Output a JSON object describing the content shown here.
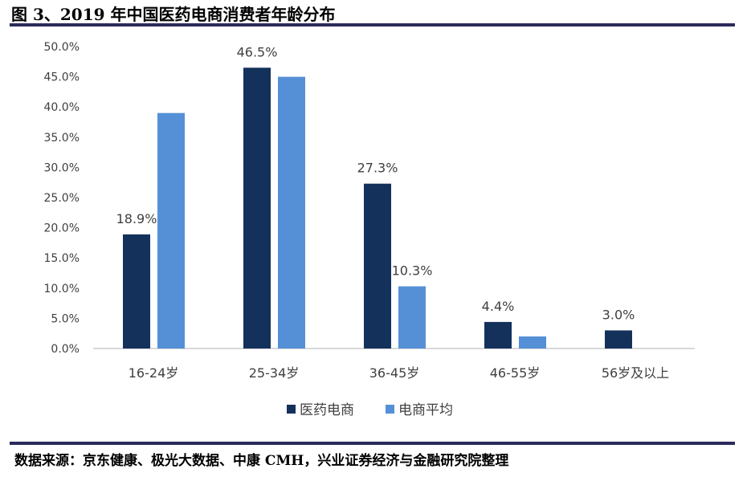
{
  "title": "图 3、2019 年中国医药电商消费者年龄分布",
  "source": "数据来源：京东健康、极光大数据、中康 CMH，兴业证券经济与金融研究院整理",
  "chart_data": {
    "type": "bar",
    "title": "图 3、2019 年中国医药电商消费者年龄分布",
    "categories": [
      "16-24岁",
      "25-34岁",
      "36-45岁",
      "46-55岁",
      "56岁及以上"
    ],
    "series": [
      {
        "name": "医药电商",
        "color": "#14315c",
        "values": [
          18.9,
          46.5,
          27.3,
          4.4,
          3.0
        ],
        "labels": [
          "18.9%",
          "46.5%",
          "27.3%",
          "4.4%",
          "3.0%"
        ]
      },
      {
        "name": "电商平均",
        "color": "#5590d6",
        "values": [
          39.0,
          45.0,
          10.3,
          2.0,
          0
        ],
        "labels": [
          "",
          "",
          "10.3%",
          "",
          ""
        ]
      }
    ],
    "ylim": [
      0,
      50
    ],
    "yticks": [
      "0.0%",
      "5.0%",
      "10.0%",
      "15.0%",
      "20.0%",
      "25.0%",
      "30.0%",
      "35.0%",
      "40.0%",
      "45.0%",
      "50.0%"
    ],
    "legend": "bottom",
    "grid": false
  }
}
